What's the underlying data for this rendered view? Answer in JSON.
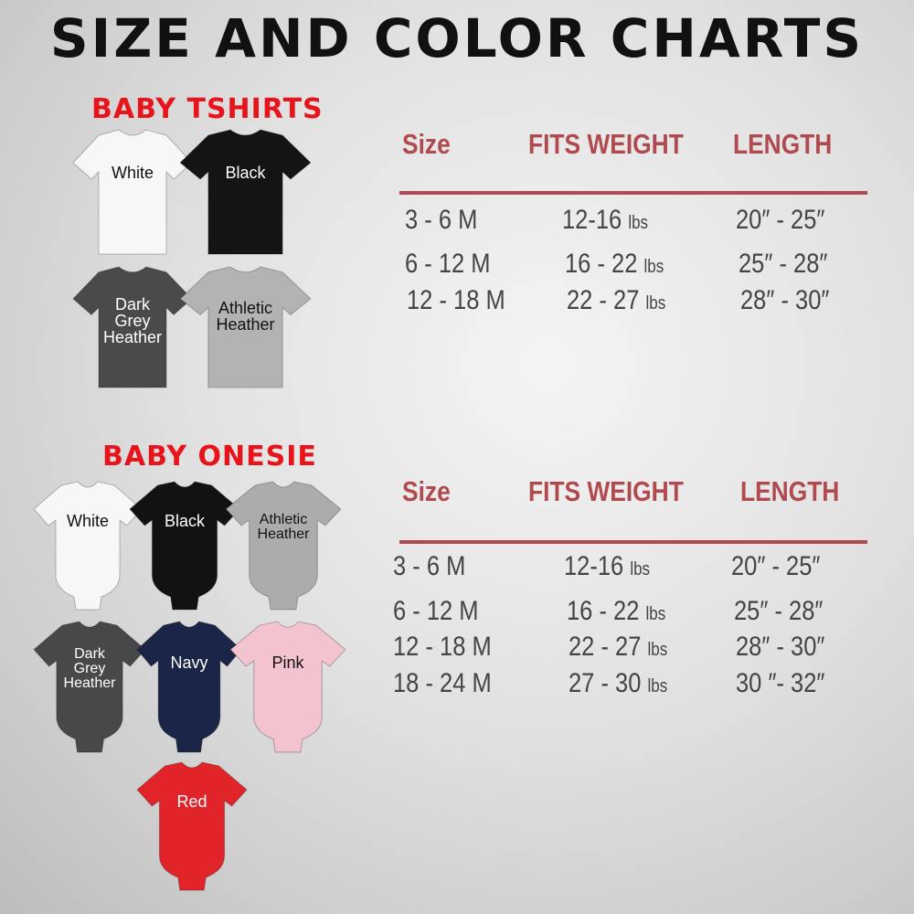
{
  "title": "SIZE AND COLOR CHARTS",
  "tshirts": {
    "heading": "BABY TSHIRTS",
    "colors": [
      {
        "label": "White",
        "fill": "#f7f7f7",
        "text": "#111"
      },
      {
        "label": "Black",
        "fill": "#141414",
        "text": "#fff"
      },
      {
        "label": "Dark Grey Heather",
        "fill": "#4a4a4d",
        "text": "#fff"
      },
      {
        "label": "Athletic Heather",
        "fill": "#b3b3b3",
        "text": "#111"
      }
    ],
    "table": {
      "headers": [
        "Size",
        "FITS WEIGHT",
        "LENGTH"
      ],
      "rows": [
        {
          "size": "3 - 6 M",
          "weight": "12-16",
          "unit": "lbs",
          "length": "20″ - 25″"
        },
        {
          "size": "6 - 12 M",
          "weight": "16 - 22",
          "unit": "lbs",
          "length": "25″ - 28″"
        },
        {
          "size": "12 - 18 M",
          "weight": "22 - 27",
          "unit": "lbs",
          "length": "28″ - 30″"
        }
      ]
    }
  },
  "onesies": {
    "heading": "BABY ONESIE",
    "colors": [
      {
        "label": "White",
        "fill": "#f7f7f7",
        "text": "#111"
      },
      {
        "label": "Black",
        "fill": "#121212",
        "text": "#fff"
      },
      {
        "label": "Athletic Heather",
        "fill": "#acacac",
        "text": "#111"
      },
      {
        "label": "Dark Grey Heather",
        "fill": "#48484a",
        "text": "#fff"
      },
      {
        "label": "Navy",
        "fill": "#1b2547",
        "text": "#fff"
      },
      {
        "label": "Pink",
        "fill": "#f3c3cf",
        "text": "#111"
      },
      {
        "label": "Red",
        "fill": "#e0242a",
        "text": "#fff"
      }
    ],
    "table": {
      "headers": [
        "Size",
        "FITS WEIGHT",
        "LENGTH"
      ],
      "rows": [
        {
          "size": "3 - 6 M",
          "weight": "12-16",
          "unit": "lbs",
          "length": "20″ - 25″"
        },
        {
          "size": "6 - 12 M",
          "weight": "16 - 22",
          "unit": "lbs",
          "length": "25″ - 28″"
        },
        {
          "size": "12 - 18 M",
          "weight": "22 - 27",
          "unit": "lbs",
          "length": "28″ - 30″"
        },
        {
          "size": "18 - 24 M",
          "weight": "27 - 30",
          "unit": "lbs",
          "length": "30 ″- 32″"
        }
      ]
    }
  }
}
